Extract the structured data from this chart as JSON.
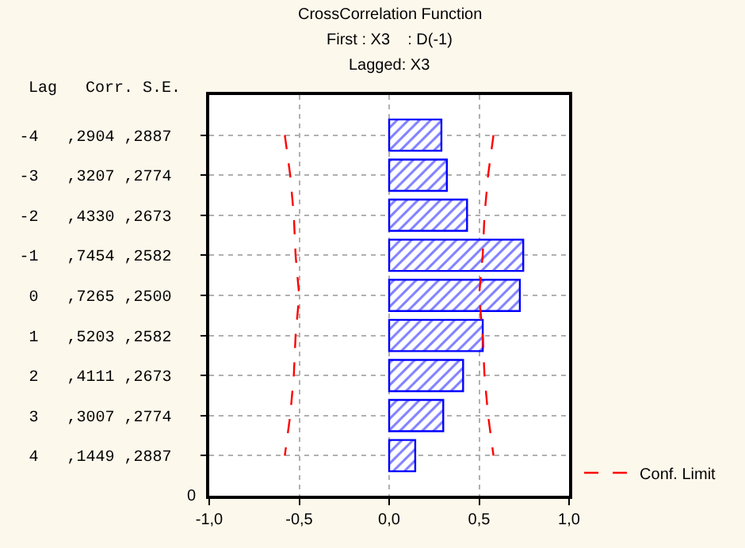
{
  "chart_data": {
    "type": "bar",
    "orientation": "horizontal",
    "title": "CrossCorrelation Function",
    "subtitle": "First : X3    : D(-1)\nLagged: X3",
    "ylabel": "Lag   Corr. S.E.",
    "categories": [
      "-4   ,2904 ,2887",
      "-3   ,3207 ,2774",
      "-2   ,4330 ,2673",
      "-1   ,7454 ,2582",
      " 0   ,7265 ,2500",
      " 1   ,5203 ,2582",
      " 2   ,4111 ,2673",
      " 3   ,3007 ,2774",
      " 4   ,1449 ,2887"
    ],
    "series": [
      {
        "color": "#0000ff",
        "values": [
          0.2904,
          0.3207,
          0.433,
          0.7454,
          0.7265,
          0.5203,
          0.4111,
          0.3007,
          0.1449
        ]
      },
      {
        "type": "line",
        "name": "Conf. Limit",
        "color": "#ff0000",
        "line_style": "dashed",
        "values": [
          0.58,
          0.55,
          0.53,
          0.52,
          0.5,
          0.52,
          0.53,
          0.55,
          0.58
        ]
      },
      {
        "type": "line",
        "color": "#ff0000",
        "line_style": "dashed",
        "values": [
          -0.58,
          -0.55,
          -0.53,
          -0.52,
          -0.5,
          -0.52,
          -0.53,
          -0.55,
          -0.58
        ]
      }
    ],
    "xlim": [
      -1,
      1
    ],
    "xticks": [
      {
        "value": -1,
        "label": "-1,0"
      },
      {
        "value": -0.5,
        "label": "-0,5"
      },
      {
        "value": 0,
        "label": "0,0"
      },
      {
        "value": 0.5,
        "label": "0,5"
      },
      {
        "value": 1,
        "label": "1,0"
      }
    ],
    "annotations": [
      "0"
    ],
    "grid": true,
    "legend": "bottom right",
    "marker": "none"
  }
}
